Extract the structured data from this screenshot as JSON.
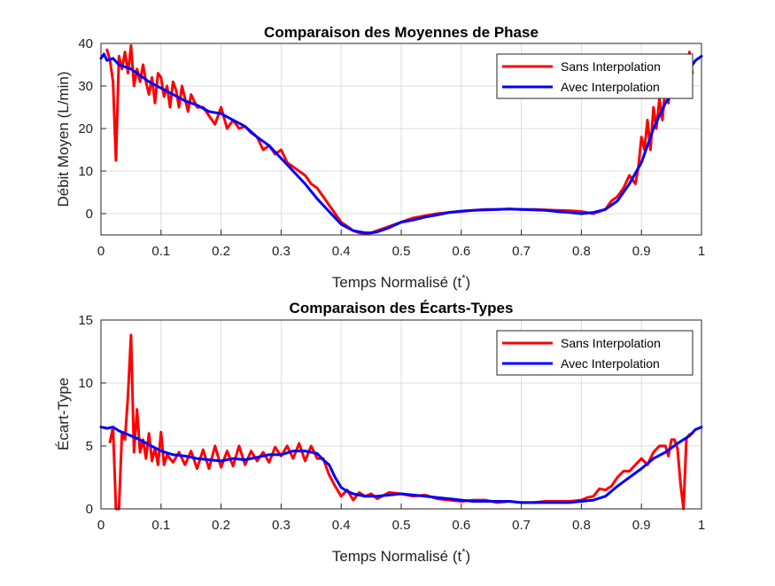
{
  "chart_data": [
    {
      "type": "line",
      "title": "Comparaison des Moyennes de Phase",
      "xlabel": "Temps Normalisé (t",
      "xlabel_sup": "*",
      "xlabel_end": ")",
      "ylabel": "Débit Moyen (L/min)",
      "xlim": [
        0,
        1
      ],
      "ylim": [
        -5,
        40
      ],
      "xticks": [
        "0",
        "0.1",
        "0.2",
        "0.3",
        "0.4",
        "0.5",
        "0.6",
        "0.7",
        "0.8",
        "0.9",
        "1"
      ],
      "yticks": [
        "0",
        "10",
        "20",
        "30",
        "40"
      ],
      "grid": true,
      "legend_position": "top-right",
      "series": [
        {
          "name": "Sans Interpolation",
          "color": "#ff0000",
          "x": [
            0.01,
            0.015,
            0.02,
            0.025,
            0.03,
            0.035,
            0.04,
            0.045,
            0.05,
            0.055,
            0.06,
            0.065,
            0.07,
            0.075,
            0.08,
            0.085,
            0.09,
            0.095,
            0.1,
            0.105,
            0.11,
            0.115,
            0.12,
            0.125,
            0.13,
            0.135,
            0.14,
            0.145,
            0.15,
            0.16,
            0.17,
            0.18,
            0.19,
            0.2,
            0.21,
            0.22,
            0.23,
            0.24,
            0.25,
            0.26,
            0.27,
            0.28,
            0.29,
            0.3,
            0.31,
            0.32,
            0.33,
            0.34,
            0.35,
            0.36,
            0.37,
            0.38,
            0.39,
            0.4,
            0.41,
            0.42,
            0.43,
            0.44,
            0.45,
            0.46,
            0.47,
            0.48,
            0.5,
            0.52,
            0.54,
            0.56,
            0.58,
            0.6,
            0.62,
            0.64,
            0.66,
            0.68,
            0.7,
            0.72,
            0.74,
            0.76,
            0.78,
            0.8,
            0.82,
            0.83,
            0.84,
            0.85,
            0.86,
            0.87,
            0.88,
            0.89,
            0.895,
            0.9,
            0.905,
            0.91,
            0.915,
            0.92,
            0.925,
            0.93,
            0.935,
            0.94,
            0.945,
            0.95,
            0.955,
            0.96,
            0.965,
            0.97,
            0.975,
            0.98,
            0.985
          ],
          "y": [
            38.5,
            36,
            31,
            12.5,
            37,
            34,
            38,
            33,
            39.5,
            30,
            34,
            31,
            35,
            31,
            28,
            32,
            26,
            33,
            32,
            27.5,
            30,
            25,
            31,
            29,
            25,
            30,
            27,
            24,
            28,
            25,
            25,
            23,
            21,
            25,
            20,
            22,
            20,
            20.5,
            19,
            18,
            15,
            16,
            14,
            15,
            12,
            11,
            10,
            9,
            7,
            6,
            4,
            2,
            0,
            -2,
            -3,
            -4,
            -4.5,
            -4.7,
            -4.5,
            -4,
            -3.5,
            -3,
            -2,
            -1,
            -0.5,
            0,
            0.3,
            0.5,
            0.8,
            1,
            1,
            1.1,
            1,
            1,
            0.9,
            0.8,
            0.7,
            0.5,
            0,
            0.5,
            1,
            3,
            4,
            6,
            9,
            7,
            11,
            18,
            15,
            22,
            15,
            25,
            20,
            27,
            22,
            30,
            26,
            33,
            28,
            30,
            35,
            33,
            30,
            38,
            33
          ]
        },
        {
          "name": "Avec Interpolation",
          "color": "#0000ff",
          "x": [
            0,
            0.005,
            0.01,
            0.02,
            0.03,
            0.04,
            0.05,
            0.06,
            0.08,
            0.1,
            0.12,
            0.14,
            0.16,
            0.18,
            0.2,
            0.22,
            0.24,
            0.26,
            0.28,
            0.3,
            0.32,
            0.34,
            0.36,
            0.38,
            0.4,
            0.42,
            0.44,
            0.45,
            0.46,
            0.48,
            0.5,
            0.52,
            0.54,
            0.56,
            0.58,
            0.6,
            0.62,
            0.64,
            0.66,
            0.68,
            0.7,
            0.72,
            0.74,
            0.76,
            0.78,
            0.8,
            0.82,
            0.84,
            0.86,
            0.88,
            0.9,
            0.91,
            0.92,
            0.93,
            0.94,
            0.95,
            0.96,
            0.97,
            0.98,
            0.99,
            1
          ],
          "y": [
            36.5,
            37.5,
            36,
            36.5,
            35,
            34.5,
            34,
            33,
            31,
            29.5,
            28,
            26.5,
            25.5,
            24,
            23.5,
            22,
            20.5,
            18,
            16,
            13,
            10,
            7,
            3.5,
            0.5,
            -2.5,
            -4,
            -4.5,
            -4.5,
            -4.3,
            -3.3,
            -2,
            -1.5,
            -0.8,
            -0.3,
            0.3,
            0.6,
            0.8,
            0.9,
            1,
            1.1,
            1,
            0.9,
            0.8,
            0.5,
            0.3,
            0,
            0.3,
            1,
            3,
            7,
            12,
            16,
            20,
            23,
            26,
            28,
            30,
            32,
            34,
            36,
            37
          ]
        }
      ]
    },
    {
      "type": "line",
      "title": "Comparaison des Écarts-Types",
      "xlabel": "Temps Normalisé (t",
      "xlabel_sup": "*",
      "xlabel_end": ")",
      "ylabel": "Écart-Type",
      "xlim": [
        0,
        1
      ],
      "ylim": [
        0,
        15
      ],
      "xticks": [
        "0",
        "0.1",
        "0.2",
        "0.3",
        "0.4",
        "0.5",
        "0.6",
        "0.7",
        "0.8",
        "0.9",
        "1"
      ],
      "yticks": [
        "0",
        "5",
        "10",
        "15"
      ],
      "grid": true,
      "legend_position": "top-right",
      "series": [
        {
          "name": "Sans Interpolation",
          "color": "#ff0000",
          "x": [
            0.015,
            0.02,
            0.025,
            0.03,
            0.035,
            0.04,
            0.045,
            0.05,
            0.055,
            0.06,
            0.065,
            0.07,
            0.075,
            0.08,
            0.085,
            0.09,
            0.095,
            0.1,
            0.105,
            0.11,
            0.12,
            0.13,
            0.14,
            0.15,
            0.16,
            0.17,
            0.18,
            0.19,
            0.2,
            0.21,
            0.22,
            0.23,
            0.24,
            0.25,
            0.26,
            0.27,
            0.28,
            0.29,
            0.3,
            0.31,
            0.32,
            0.33,
            0.34,
            0.35,
            0.36,
            0.37,
            0.38,
            0.39,
            0.4,
            0.41,
            0.42,
            0.43,
            0.44,
            0.45,
            0.46,
            0.48,
            0.5,
            0.52,
            0.54,
            0.56,
            0.58,
            0.6,
            0.62,
            0.64,
            0.66,
            0.68,
            0.7,
            0.72,
            0.74,
            0.76,
            0.78,
            0.8,
            0.81,
            0.82,
            0.83,
            0.84,
            0.85,
            0.86,
            0.87,
            0.88,
            0.89,
            0.9,
            0.91,
            0.92,
            0.93,
            0.94,
            0.945,
            0.95,
            0.955,
            0.96,
            0.965,
            0.97,
            0.975,
            0.98,
            0.985
          ],
          "y": [
            5.3,
            6.5,
            0,
            0,
            6,
            5.5,
            9,
            13.8,
            4.5,
            7.9,
            4.5,
            5.5,
            4,
            6,
            3.8,
            4.8,
            3.5,
            6.1,
            3.5,
            4.3,
            3.7,
            4.5,
            3.5,
            4.6,
            3.2,
            4.7,
            3.2,
            5,
            3.3,
            4.6,
            3.4,
            5,
            3.5,
            4.6,
            3.8,
            4.5,
            3.7,
            4.9,
            4.2,
            5,
            4,
            5.2,
            3.8,
            5,
            4,
            4,
            2.7,
            1.8,
            1,
            1.5,
            0.7,
            1.3,
            1,
            1.2,
            0.8,
            1.3,
            1.2,
            1,
            1.1,
            0.8,
            0.7,
            0.6,
            0.7,
            0.7,
            0.5,
            0.6,
            0.5,
            0.5,
            0.6,
            0.6,
            0.6,
            0.7,
            0.9,
            1,
            1.6,
            1.5,
            1.8,
            2.5,
            3,
            3,
            3.5,
            4,
            3.5,
            4.5,
            5,
            5,
            4.2,
            5.5,
            5.5,
            4.8,
            2,
            0,
            5.6,
            5.9,
            6
          ]
        },
        {
          "name": "Avec Interpolation",
          "color": "#0000ff",
          "x": [
            0,
            0.01,
            0.02,
            0.03,
            0.04,
            0.05,
            0.06,
            0.08,
            0.1,
            0.12,
            0.14,
            0.16,
            0.18,
            0.2,
            0.22,
            0.24,
            0.26,
            0.28,
            0.3,
            0.32,
            0.34,
            0.36,
            0.37,
            0.38,
            0.39,
            0.4,
            0.41,
            0.42,
            0.44,
            0.46,
            0.48,
            0.5,
            0.52,
            0.54,
            0.56,
            0.58,
            0.6,
            0.62,
            0.64,
            0.66,
            0.68,
            0.7,
            0.72,
            0.74,
            0.76,
            0.78,
            0.8,
            0.82,
            0.84,
            0.86,
            0.88,
            0.9,
            0.92,
            0.94,
            0.96,
            0.98,
            0.99,
            1
          ],
          "y": [
            6.5,
            6.4,
            6.5,
            6.2,
            6,
            5.8,
            5.6,
            5.1,
            4.6,
            4.3,
            4.2,
            4,
            3.9,
            3.8,
            4,
            3.9,
            4.1,
            4.3,
            4.3,
            4.6,
            4.6,
            4.4,
            3.9,
            3.5,
            2.5,
            1.7,
            1.4,
            1.2,
            1,
            1,
            1.1,
            1.2,
            1.1,
            1,
            0.9,
            0.8,
            0.7,
            0.6,
            0.6,
            0.6,
            0.6,
            0.5,
            0.5,
            0.5,
            0.5,
            0.5,
            0.6,
            0.7,
            1,
            1.8,
            2.5,
            3.2,
            4,
            4.5,
            5.2,
            5.8,
            6.3,
            6.5
          ]
        }
      ]
    }
  ]
}
